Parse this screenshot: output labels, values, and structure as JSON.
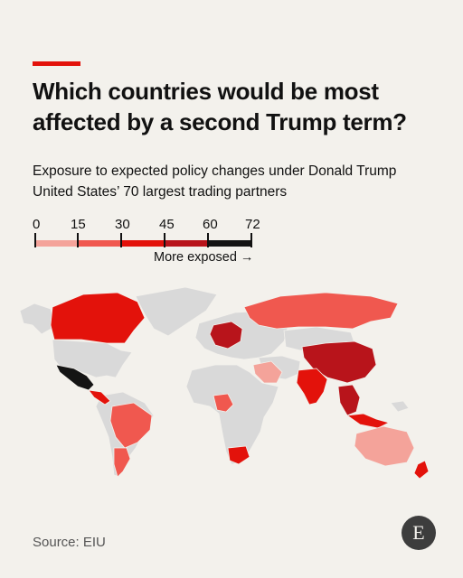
{
  "header": {
    "title": "Which countries would be most affected by a second Trump term?",
    "subtitle_line1": "Exposure to expected policy changes under Donald Trump",
    "subtitle_line2": "United States’ 70 largest trading partners"
  },
  "legend": {
    "ticks": [
      "0",
      "15",
      "30",
      "45",
      "60",
      "72"
    ],
    "note": "More exposed →",
    "bins": [
      {
        "range": [
          0,
          15
        ],
        "color": "#f4a39a"
      },
      {
        "range": [
          15,
          30
        ],
        "color": "#f0584f"
      },
      {
        "range": [
          30,
          45
        ],
        "color": "#e3120b"
      },
      {
        "range": [
          45,
          60
        ],
        "color": "#b8141b"
      },
      {
        "range": [
          60,
          72
        ],
        "color": "#141414"
      }
    ]
  },
  "map_colors": {
    "background": "#f3f1ec",
    "no_data": "#d9d9d9",
    "borders": "#f3f1ec"
  },
  "regions": [
    {
      "name": "Mexico",
      "bin": 4
    },
    {
      "name": "Canada",
      "bin": 2
    },
    {
      "name": "China",
      "bin": 3
    },
    {
      "name": "India",
      "bin": 2
    },
    {
      "name": "Vietnam",
      "bin": 3
    },
    {
      "name": "Brazil",
      "bin": 1
    },
    {
      "name": "Argentina",
      "bin": 1
    },
    {
      "name": "Nigeria",
      "bin": 1
    },
    {
      "name": "South Africa",
      "bin": 2
    },
    {
      "name": "Australia",
      "bin": 0
    },
    {
      "name": "Saudi Arabia",
      "bin": 0
    },
    {
      "name": "New Zealand",
      "bin": 2
    },
    {
      "name": "Germany",
      "bin": 3
    },
    {
      "name": "Russia",
      "bin": 1
    }
  ],
  "footer": {
    "source": "Source: EIU",
    "logo_letter": "E"
  }
}
